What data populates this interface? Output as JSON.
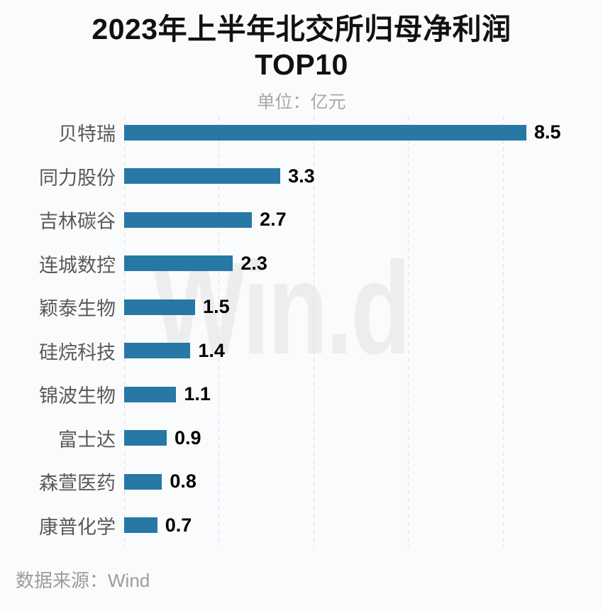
{
  "page": {
    "title_line1": "2023年上半年北交所归母净利润",
    "title_line2": "TOP10",
    "subtitle": "单位：亿元",
    "watermark": "Win.d",
    "source": "数据来源：Wind"
  },
  "colors": {
    "background": "#fafbfd",
    "bar": "#2778a4",
    "gridline": "#dcdee1",
    "title": "#111111",
    "subtitle": "#a9a9a9",
    "category_label": "#595959",
    "value_label": "#000000",
    "source": "#9c9c9c",
    "watermark": "#ededef"
  },
  "chart_data": {
    "type": "bar",
    "orientation": "horizontal",
    "title": "2023年上半年北交所归母净利润TOP10",
    "subtitle": "单位：亿元",
    "unit": "亿元",
    "categories": [
      "贝特瑞",
      "同力股份",
      "吉林碳谷",
      "连城数控",
      "颖泰生物",
      "硅烷科技",
      "锦波生物",
      "富士达",
      "森萱医药",
      "康普化学"
    ],
    "values": [
      8.5,
      3.3,
      2.7,
      2.3,
      1.5,
      1.4,
      1.1,
      0.9,
      0.8,
      0.7
    ],
    "value_labels": [
      "8.5",
      "3.3",
      "2.7",
      "2.3",
      "1.5",
      "1.4",
      "1.1",
      "0.9",
      "0.8",
      "0.7"
    ],
    "xlim": [
      0,
      8.8
    ],
    "gridline_values": [
      0,
      2,
      4,
      6,
      8
    ],
    "grid": "dashed-vertical",
    "legend": "none",
    "data_source": "Wind"
  }
}
